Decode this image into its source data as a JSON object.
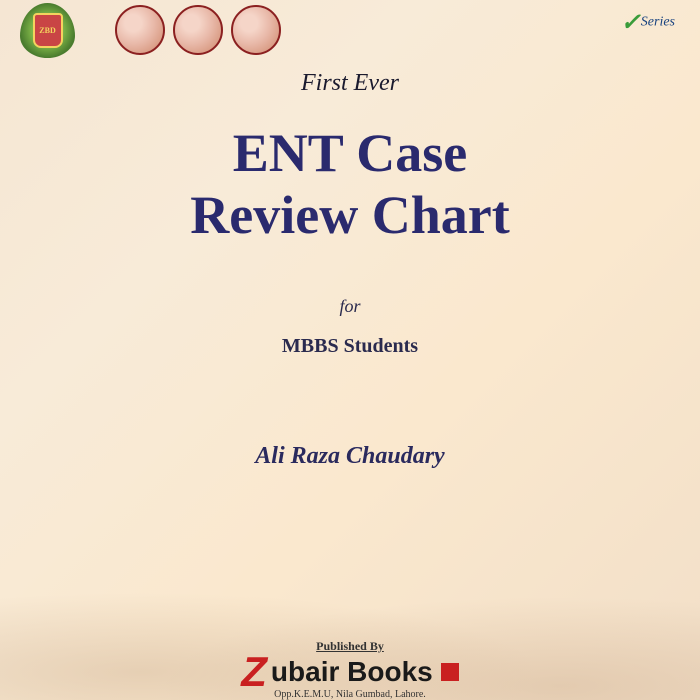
{
  "header": {
    "logo_badge_text": "ZBD",
    "series_label": "Series"
  },
  "cover": {
    "tagline": "First Ever",
    "title_line1": "ENT Case",
    "title_line2": "Review Chart",
    "for_label": "for",
    "audience": "MBBS Students",
    "author": "Ali Raza Chaudary"
  },
  "publisher": {
    "label": "Published By",
    "name_rest": "ubair Books",
    "address": "Opp.K.E.M.U, Nila Gumbad, Lahore."
  },
  "colors": {
    "title_color": "#2a2a6e",
    "accent_red": "#c92020",
    "bg_start": "#f5e6d3",
    "bg_end": "#f2dfc8"
  }
}
